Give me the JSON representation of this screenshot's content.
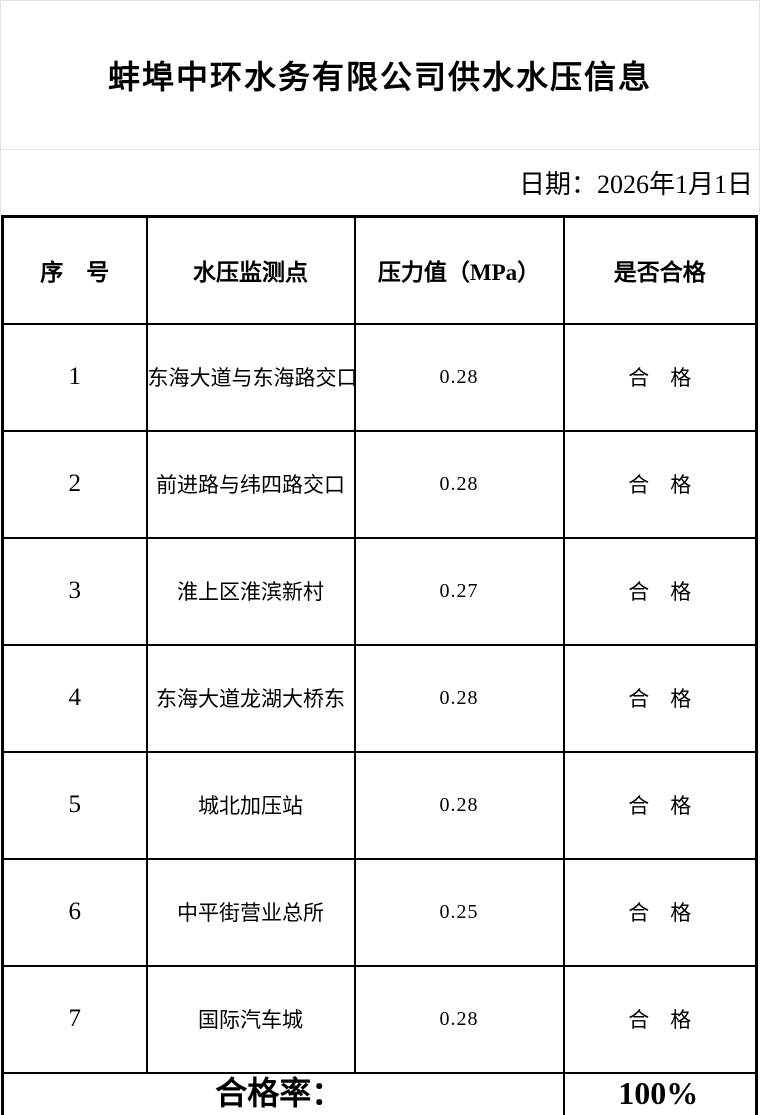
{
  "page": {
    "title": "蚌埠中环水务有限公司供水水压信息",
    "date_line": "日期：2026年1月1日"
  },
  "table": {
    "headers": {
      "no": "序　号",
      "point": "水压监测点",
      "pressure": "压力值（MPa）",
      "qualified": "是否合格"
    },
    "rows": [
      {
        "no": "1",
        "point": "东海大道与东海路交口",
        "pressure": "0.28",
        "qualified": "合　格"
      },
      {
        "no": "2",
        "point": "前进路与纬四路交口",
        "pressure": "0.28",
        "qualified": "合　格"
      },
      {
        "no": "3",
        "point": "淮上区淮滨新村",
        "pressure": "0.27",
        "qualified": "合　格"
      },
      {
        "no": "4",
        "point": "东海大道龙湖大桥东",
        "pressure": "0.28",
        "qualified": "合　格"
      },
      {
        "no": "5",
        "point": "城北加压站",
        "pressure": "0.28",
        "qualified": "合　格"
      },
      {
        "no": "6",
        "point": "中平街营业总所",
        "pressure": "0.25",
        "qualified": "合　格"
      },
      {
        "no": "7",
        "point": "国际汽车城",
        "pressure": "0.28",
        "qualified": "合　格"
      }
    ],
    "footer": {
      "label": "合格率：",
      "value": "100%"
    }
  },
  "colors": {
    "text": "#000000",
    "table_border": "#000000",
    "faint_grid": "#e3e3e3",
    "background": "#ffffff"
  }
}
